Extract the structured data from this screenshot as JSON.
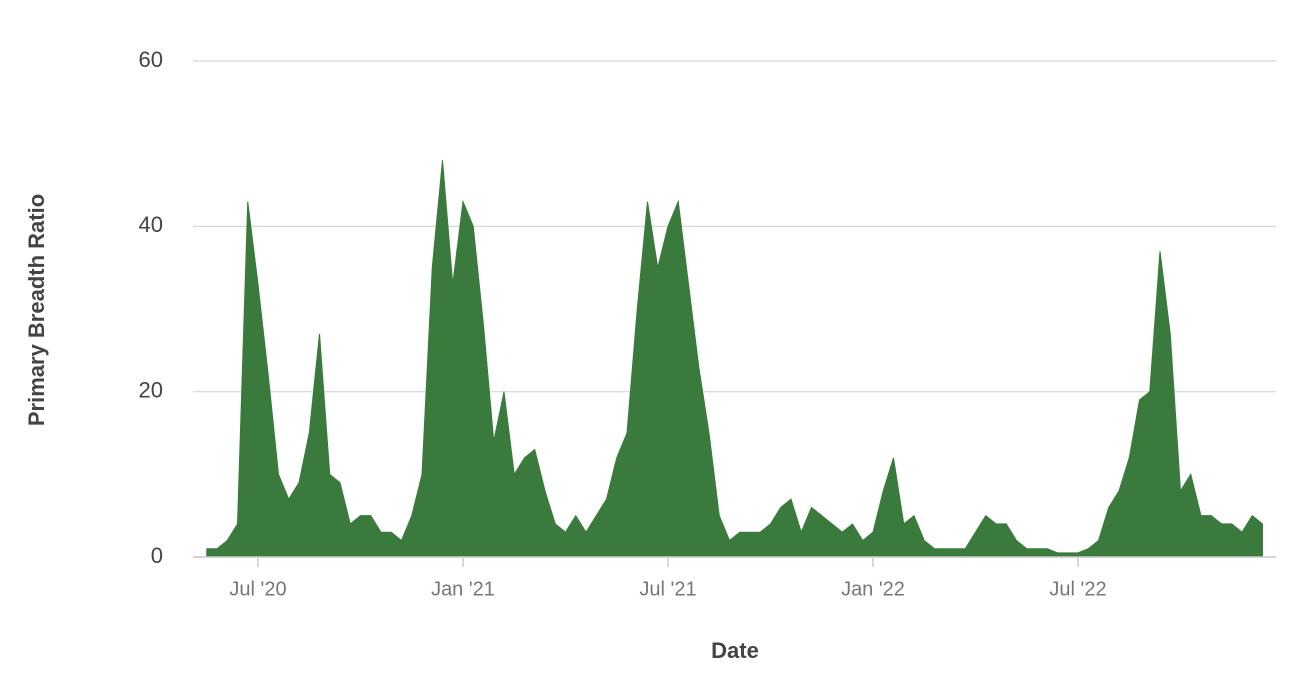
{
  "chart_data": {
    "type": "area",
    "x_label": "Date",
    "y_label": "Primary Breadth Ratio",
    "color": "#3a7a3c",
    "categories": [
      null,
      null,
      null,
      null,
      null,
      "Jul '20",
      null,
      null,
      null,
      null,
      null,
      null,
      null,
      null,
      null,
      null,
      null,
      null,
      null,
      null,
      null,
      null,
      null,
      null,
      null,
      "Jan '21",
      null,
      null,
      null,
      null,
      null,
      null,
      null,
      null,
      null,
      null,
      null,
      null,
      null,
      null,
      null,
      null,
      null,
      null,
      null,
      "Jul '21",
      null,
      null,
      null,
      null,
      null,
      null,
      null,
      null,
      null,
      null,
      null,
      null,
      null,
      null,
      null,
      null,
      null,
      null,
      null,
      "Jan '22",
      null,
      null,
      null,
      null,
      null,
      null,
      null,
      null,
      null,
      null,
      null,
      null,
      null,
      null,
      null,
      null,
      null,
      null,
      null,
      "Jul '22",
      null,
      null,
      null,
      null,
      null,
      null,
      null,
      null,
      null,
      null,
      null,
      null,
      null,
      null,
      null,
      null,
      null,
      null
    ],
    "values": [
      1,
      1,
      2,
      4,
      43,
      33,
      22,
      10,
      7,
      9,
      15,
      27,
      10,
      9,
      4,
      5,
      5,
      3,
      3,
      2,
      5,
      10,
      35,
      48,
      33,
      43,
      40,
      28,
      14,
      20,
      10,
      12,
      13,
      8,
      4,
      3,
      5,
      3,
      5,
      7,
      12,
      15,
      30,
      43,
      35,
      40,
      43,
      33,
      23,
      15,
      5,
      2,
      3,
      3,
      3,
      4,
      6,
      7,
      3,
      6,
      5,
      4,
      3,
      4,
      2,
      3,
      8,
      12,
      4,
      5,
      2,
      1,
      1,
      1,
      1,
      3,
      5,
      4,
      4,
      2,
      1,
      1,
      1,
      0.5,
      0.5,
      0.5,
      1,
      2,
      6,
      8,
      12,
      19,
      20,
      37,
      27,
      8,
      10,
      5,
      5,
      4,
      4,
      3,
      5,
      4
    ],
    "ylim": [
      0,
      60
    ],
    "yticks": [
      0,
      20,
      40,
      60
    ],
    "grid": true
  }
}
